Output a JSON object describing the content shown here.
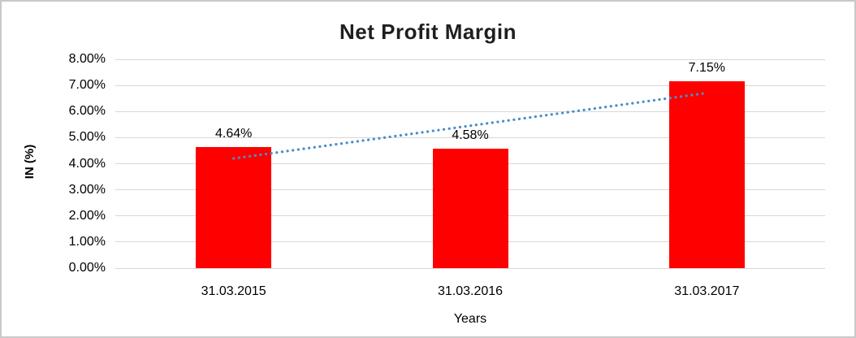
{
  "window": {
    "background_color": "#FFFFFF",
    "border_color": "#C9C9C9"
  },
  "chart_data": {
    "type": "bar",
    "title": "Net Profit Margin",
    "xlabel": "Years",
    "ylabel": "IN (%)",
    "categories": [
      "31.03.2015",
      "31.03.2016",
      "31.03.2017"
    ],
    "values": [
      4.64,
      4.58,
      7.15
    ],
    "data_labels": [
      "4.64%",
      "4.58%",
      "7.15%"
    ],
    "ylim": [
      0,
      8
    ],
    "ytick_step": 1,
    "ytick_labels": [
      "0.00%",
      "1.00%",
      "2.00%",
      "3.00%",
      "4.00%",
      "5.00%",
      "6.00%",
      "7.00%",
      "8.00%"
    ],
    "grid": true,
    "legend": "none",
    "bar_color": "#FF0000",
    "gridline_color": "#D7D7D7",
    "text_color": "#000000",
    "trendline": {
      "type": "linear",
      "style": "dotted",
      "color": "#4B8CC8",
      "start_value": 4.2,
      "end_value": 6.71
    }
  }
}
